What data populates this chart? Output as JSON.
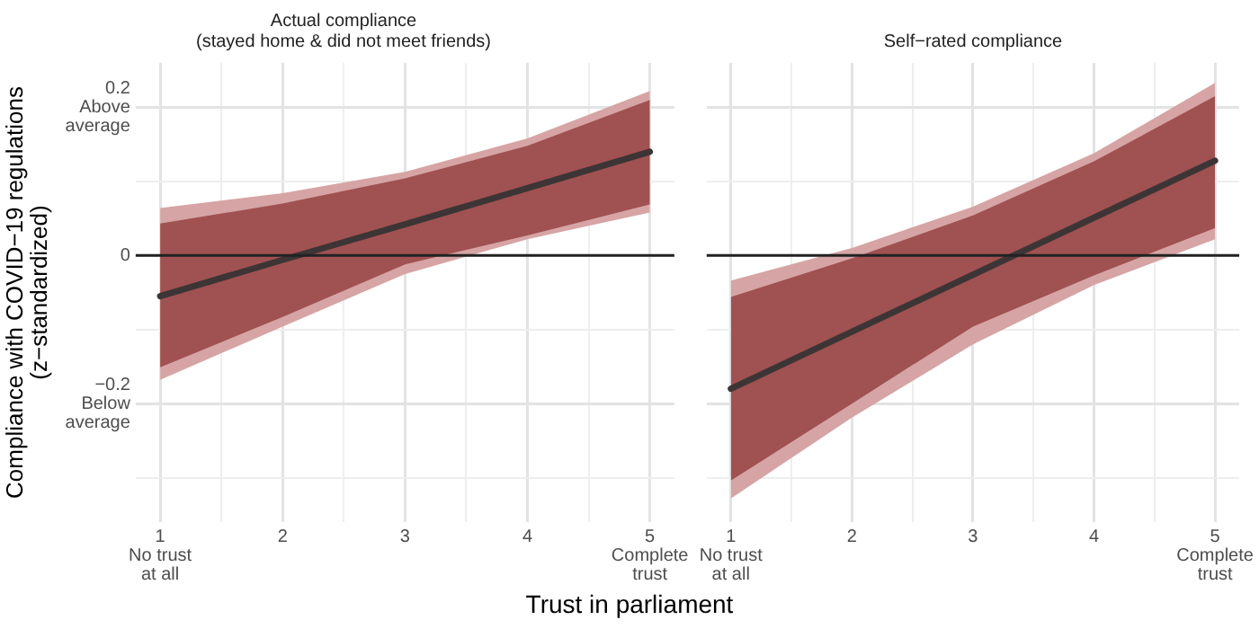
{
  "chart_data": [
    {
      "type": "line",
      "title": [
        "Actual compliance",
        "(stayed home & did not meet friends)"
      ],
      "xlabel": "Trust in parliament",
      "ylabel": [
        "Compliance with COVID−19 regulations",
        "(z−standardized)"
      ],
      "x": [
        1,
        2,
        3,
        4,
        5
      ],
      "series": [
        {
          "color": "#d6a4a4",
          "values": [
            null,
            null,
            null,
            null,
            null
          ],
          "lower": [
            -0.168,
            -0.096,
            -0.025,
            0.022,
            0.058
          ],
          "upper": [
            0.064,
            0.084,
            0.113,
            0.158,
            0.222
          ]
        },
        {
          "color": "#a05151",
          "values": [
            null,
            null,
            null,
            null,
            null
          ],
          "lower": [
            -0.151,
            -0.083,
            -0.012,
            0.027,
            0.069
          ],
          "upper": [
            0.043,
            0.07,
            0.104,
            0.148,
            0.21
          ]
        },
        {
          "color": "#3d3535",
          "values": [
            -0.055,
            -0.006,
            0.042,
            0.091,
            0.14
          ]
        }
      ],
      "xlim": [
        0.8,
        5.2
      ],
      "xticks": [
        {
          "value": 1,
          "label": "1\nNo trust\nat all"
        },
        {
          "value": 1.5,
          "label": null
        },
        2,
        {
          "value": 2.5,
          "label": null
        },
        3,
        {
          "value": 3.5,
          "label": null
        },
        4,
        {
          "value": 4.5,
          "label": null
        },
        {
          "value": 5,
          "label": "5\nComplete\ntrust"
        }
      ],
      "ylim": [
        -0.36,
        0.26
      ],
      "yticks": [
        {
          "value": -0.3,
          "label": null
        },
        {
          "value": -0.2,
          "label": "−0.2\nBelow\naverage"
        },
        {
          "value": -0.1,
          "label": null
        },
        0,
        {
          "value": 0.1,
          "label": null
        },
        {
          "value": 0.2,
          "label": "0.2\nAbove\naverage"
        }
      ],
      "ref_lines": [
        {
          "axis": "y",
          "value": 0,
          "color": "#222222"
        }
      ],
      "grid": true,
      "legend": false,
      "marker": "none",
      "line_style": "solid"
    },
    {
      "type": "line",
      "title": "Self−rated compliance",
      "x": [
        1,
        2,
        3,
        4,
        5
      ],
      "series": [
        {
          "color": "#d6a4a4",
          "values": [
            null,
            null,
            null,
            null,
            null
          ],
          "lower": [
            -0.328,
            -0.219,
            -0.12,
            -0.04,
            0.022
          ],
          "upper": [
            -0.034,
            0.01,
            0.066,
            0.138,
            0.233
          ]
        },
        {
          "color": "#a05151",
          "values": [
            null,
            null,
            null,
            null,
            null
          ],
          "lower": [
            -0.304,
            -0.2,
            -0.096,
            -0.027,
            0.037
          ],
          "upper": [
            -0.056,
            -0.004,
            0.054,
            0.127,
            0.215
          ]
        },
        {
          "color": "#3d3535",
          "values": [
            -0.18,
            -0.103,
            -0.026,
            0.051,
            0.128
          ]
        }
      ],
      "xlim": [
        0.8,
        5.2
      ],
      "xticks": [
        {
          "value": 1,
          "label": "1\nNo trust\nat all"
        },
        {
          "value": 1.5,
          "label": null
        },
        2,
        {
          "value": 2.5,
          "label": null
        },
        3,
        {
          "value": 3.5,
          "label": null
        },
        4,
        {
          "value": 4.5,
          "label": null
        },
        {
          "value": 5,
          "label": "5\nComplete\ntrust"
        }
      ],
      "ylim": [
        -0.36,
        0.26
      ],
      "yticks": [
        {
          "value": -0.3,
          "label": null
        },
        -0.2,
        {
          "value": -0.1,
          "label": null
        },
        0,
        {
          "value": 0.1,
          "label": null
        },
        0.2
      ],
      "ref_lines": [
        {
          "axis": "y",
          "value": 0,
          "color": "#222222"
        }
      ],
      "grid": true,
      "legend": false,
      "marker": "none",
      "line_style": "solid",
      "tick_labels": "x"
    }
  ]
}
